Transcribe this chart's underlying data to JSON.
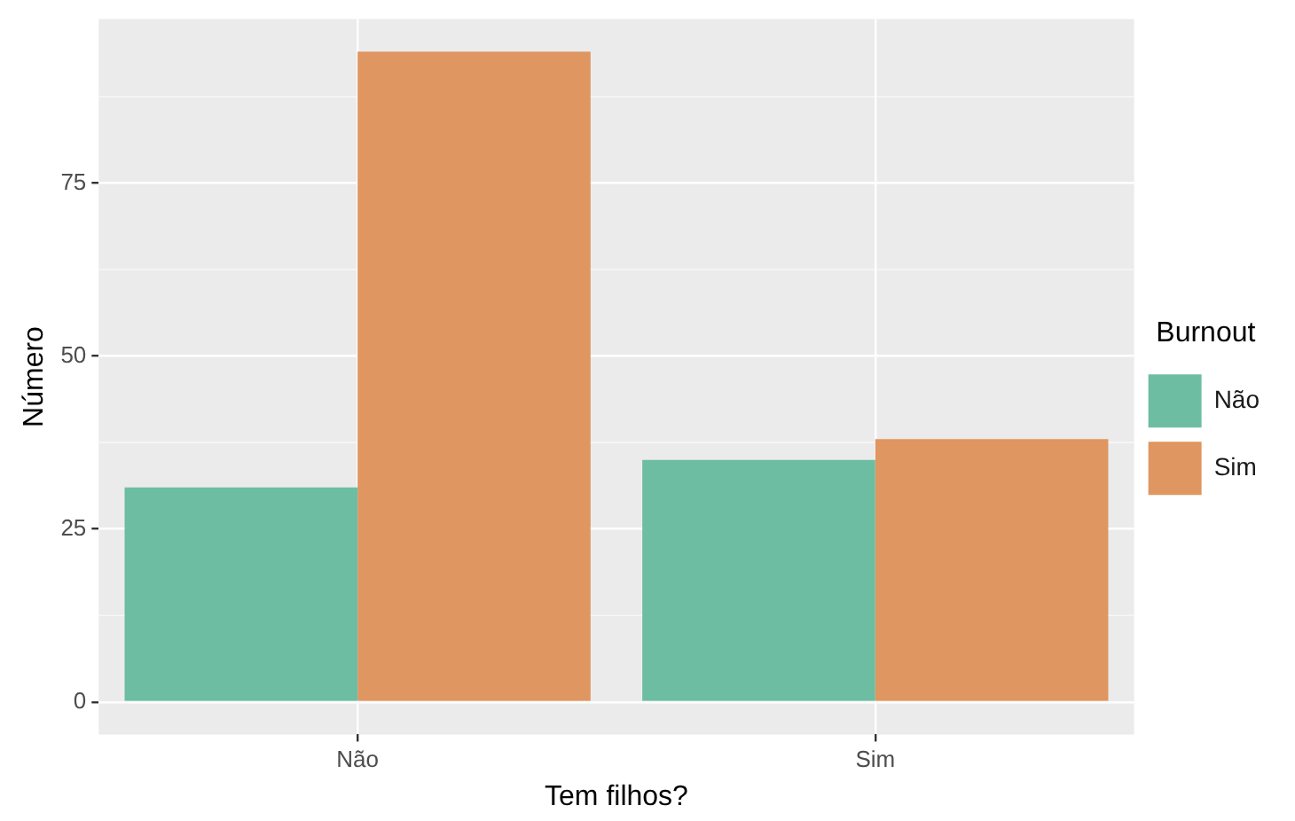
{
  "chart_data": {
    "type": "bar",
    "xlabel": "Tem filhos?",
    "ylabel": "Número",
    "legend_title": "Burnout",
    "categories": [
      "Não",
      "Sim"
    ],
    "series": [
      {
        "name": "Não",
        "color": "#6dbda2",
        "values": [
          31,
          35
        ]
      },
      {
        "name": "Sim",
        "color": "#e09660",
        "values": [
          94,
          38
        ]
      }
    ],
    "ylim": [
      -4.7,
      98.7
    ],
    "yticks": [
      0,
      25,
      50,
      75
    ],
    "grid": true,
    "legend": "right"
  }
}
